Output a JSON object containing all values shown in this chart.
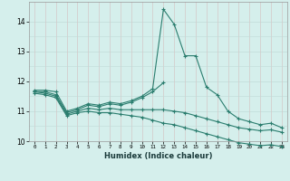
{
  "xlabel": "Humidex (Indice chaleur)",
  "x": [
    0,
    1,
    2,
    3,
    4,
    5,
    6,
    7,
    8,
    9,
    10,
    11,
    12,
    13,
    14,
    15,
    16,
    17,
    18,
    19,
    20,
    21,
    22,
    23
  ],
  "line1": [
    11.7,
    11.7,
    11.65,
    11.0,
    11.1,
    11.25,
    11.2,
    11.3,
    11.25,
    11.35,
    11.5,
    11.75,
    14.4,
    13.9,
    12.85,
    12.85,
    11.8,
    11.55,
    11.0,
    10.75,
    10.65,
    10.55,
    10.6,
    10.45
  ],
  "line2": [
    11.65,
    11.65,
    11.55,
    10.95,
    11.05,
    11.2,
    11.15,
    11.25,
    11.2,
    11.3,
    11.45,
    11.65,
    11.95,
    null,
    null,
    null,
    null,
    null,
    null,
    null,
    null,
    null,
    null,
    null
  ],
  "line4": [
    11.65,
    11.6,
    11.5,
    10.9,
    11.0,
    11.1,
    11.05,
    11.1,
    11.05,
    11.05,
    11.05,
    11.05,
    11.05,
    11.0,
    10.95,
    10.85,
    10.75,
    10.65,
    10.55,
    10.45,
    10.4,
    10.35,
    10.38,
    10.3
  ],
  "line5": [
    11.6,
    11.55,
    11.45,
    10.85,
    10.95,
    11.0,
    10.95,
    10.95,
    10.9,
    10.85,
    10.8,
    10.7,
    10.6,
    10.55,
    10.45,
    10.35,
    10.25,
    10.15,
    10.05,
    9.95,
    9.9,
    9.85,
    9.88,
    9.82
  ],
  "ylim": [
    10.0,
    14.65
  ],
  "yticks": [
    10,
    11,
    12,
    13,
    14
  ],
  "line_color": "#2a7d6e",
  "bg_color": "#d5efec",
  "grid_color_h": "#c0dbd8",
  "grid_color_v": "#d4c8c8",
  "marker": "+"
}
